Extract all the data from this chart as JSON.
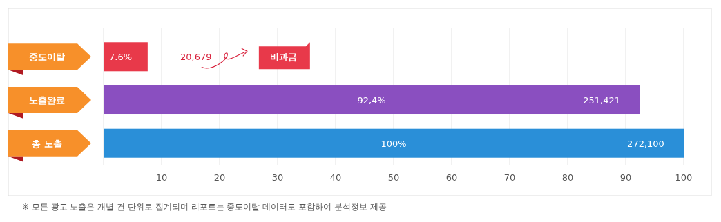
{
  "chart_data": {
    "type": "bar",
    "orientation": "horizontal",
    "categories": [
      "중도이탈",
      "노출완료",
      "총 노출"
    ],
    "values": [
      7.6,
      92.4,
      100
    ],
    "colors": [
      "#e8394a",
      "#8a4fc0",
      "#2a8fd8"
    ],
    "value_labels": [
      "7.6%",
      "92,4%",
      "100%"
    ],
    "xlim": [
      0,
      100
    ],
    "xticks": [
      10,
      20,
      30,
      40,
      50,
      60,
      70,
      80,
      90,
      100
    ],
    "grid": "x",
    "annotations": [
      "20,679",
      "비과금",
      "251,421",
      "272,100",
      "※ 모든 광고 노출은 개별 건 단위로 집계되며 리포트는 중도이탈 데이터도 포함하여 분석정보 제공"
    ]
  }
}
